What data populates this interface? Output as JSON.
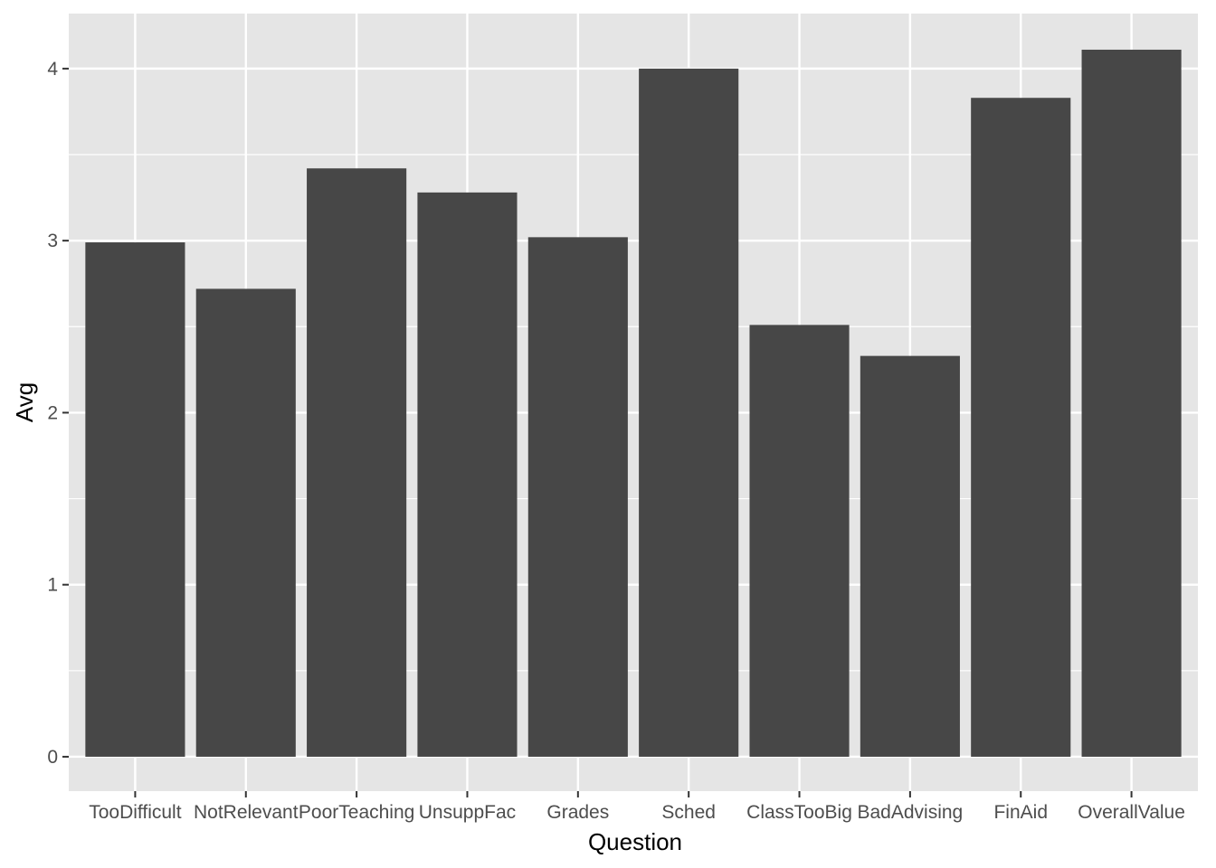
{
  "chart_data": {
    "type": "bar",
    "title": "",
    "xlabel": "Question",
    "ylabel": "Avg",
    "categories": [
      "TooDifficult",
      "NotRelevant",
      "PoorTeaching",
      "UnsuppFac",
      "Grades",
      "Sched",
      "ClassTooBig",
      "BadAdvising",
      "FinAid",
      "OverallValue"
    ],
    "values": [
      2.99,
      2.72,
      3.42,
      3.28,
      3.02,
      4.0,
      2.51,
      2.33,
      3.83,
      4.11
    ],
    "ylim": [
      -0.2,
      4.32
    ],
    "yticks": [
      0,
      1,
      2,
      3,
      4
    ],
    "grid": true,
    "colors": {
      "panel": "#E5E5E5",
      "grid": "#FFFFFF",
      "bar": "#474747",
      "tick_text": "#4D4D4D",
      "tick_mark": "#333333",
      "title_text": "#000000"
    }
  }
}
